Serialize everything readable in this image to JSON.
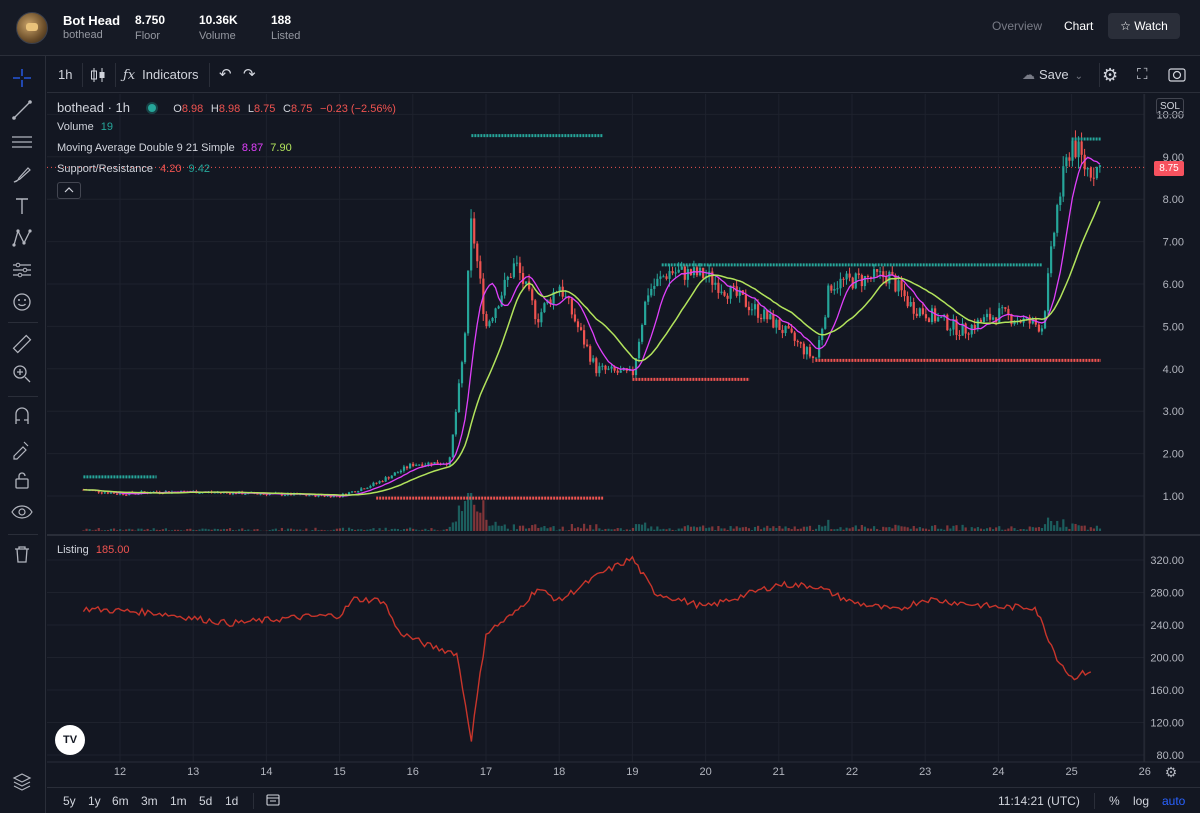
{
  "header": {
    "title": "Bot Head",
    "subtitle": "bothead",
    "stats": [
      {
        "value": "8.750",
        "label": "Floor"
      },
      {
        "value": "10.36K",
        "label": "Volume"
      },
      {
        "value": "188",
        "label": "Listed"
      }
    ],
    "nav": {
      "overview": "Overview",
      "chart": "Chart",
      "watch": "☆ Watch"
    }
  },
  "toolbar": {
    "interval": "1h",
    "indicators": "Indicators",
    "save": "Save"
  },
  "legend": {
    "symbol": "bothead · 1h",
    "o_label": "O",
    "o": "8.98",
    "h_label": "H",
    "h": "8.98",
    "l_label": "L",
    "l": "8.75",
    "c_label": "C",
    "c": "8.75",
    "change": "−0.23 (−2.56%)",
    "volume_label": "Volume",
    "volume_value": "19",
    "ma_label": "Moving Average Double 9 21 Simple",
    "ma_fast": "8.87",
    "ma_slow": "7.90",
    "sr_label": "Support/Resistance",
    "sr_support": "4.20",
    "sr_resistance": "9.42",
    "listing_label": "Listing",
    "listing_value": "185.00"
  },
  "price_scale": {
    "currency": "SOL",
    "last_price": "8.75",
    "ticks": [
      "10.00",
      "9.00",
      "8.00",
      "7.00",
      "6.00",
      "5.00",
      "4.00",
      "3.00",
      "2.00",
      "1.00"
    ]
  },
  "listing_scale": {
    "ticks": [
      "320.00",
      "280.00",
      "240.00",
      "200.00",
      "160.00",
      "120.00",
      "80.00"
    ]
  },
  "time_axis": {
    "ticks": [
      "12",
      "13",
      "14",
      "15",
      "16",
      "17",
      "18",
      "19",
      "20",
      "21",
      "22",
      "23",
      "24",
      "25",
      "26"
    ]
  },
  "bottom": {
    "ranges": [
      "5y",
      "1y",
      "6m",
      "3m",
      "1m",
      "5d",
      "1d"
    ],
    "clock": "11:14:21 (UTC)",
    "percent": "%",
    "log": "log",
    "auto": "auto"
  },
  "colors": {
    "up": "#26a69a",
    "down": "#ef5350",
    "ma_fast": "#e040fb",
    "ma_slow": "#b2e35c",
    "listing": "#c8352b",
    "accent": "#2962ff"
  },
  "chart_data": {
    "type": "candlestick",
    "interval": "1h",
    "x_start_day": 11.5,
    "daily_close": [
      {
        "day": 11.5,
        "close": 1.15
      },
      {
        "day": 12,
        "close": 1.05
      },
      {
        "day": 12.5,
        "close": 1.1
      },
      {
        "day": 13,
        "close": 1.1
      },
      {
        "day": 14,
        "close": 1.05
      },
      {
        "day": 15,
        "close": 1.0
      },
      {
        "day": 15.5,
        "close": 1.3
      },
      {
        "day": 16,
        "close": 1.75
      },
      {
        "day": 16.5,
        "close": 1.8
      },
      {
        "day": 16.7,
        "close": 4.5
      },
      {
        "day": 16.8,
        "close": 7.5
      },
      {
        "day": 17,
        "close": 5.0
      },
      {
        "day": 17.4,
        "close": 6.5
      },
      {
        "day": 17.7,
        "close": 5.2
      },
      {
        "day": 18,
        "close": 6.0
      },
      {
        "day": 18.5,
        "close": 4.0
      },
      {
        "day": 19,
        "close": 3.85
      },
      {
        "day": 19.2,
        "close": 5.8
      },
      {
        "day": 19.5,
        "close": 6.3
      },
      {
        "day": 20,
        "close": 6.2
      },
      {
        "day": 20.6,
        "close": 5.5
      },
      {
        "day": 21,
        "close": 5.0
      },
      {
        "day": 21.5,
        "close": 4.2
      },
      {
        "day": 21.7,
        "close": 6.0
      },
      {
        "day": 22.5,
        "close": 6.2
      },
      {
        "day": 22.8,
        "close": 5.5
      },
      {
        "day": 23.5,
        "close": 4.9
      },
      {
        "day": 24,
        "close": 5.3
      },
      {
        "day": 24.6,
        "close": 5.0
      },
      {
        "day": 24.8,
        "close": 7.8
      },
      {
        "day": 25,
        "close": 9.4
      },
      {
        "day": 25.2,
        "close": 8.7
      },
      {
        "day": 25.4,
        "close": 8.75
      }
    ],
    "support_levels": [
      {
        "price": 0.95,
        "from_day": 15.5,
        "to_day": 18.6
      },
      {
        "price": 3.75,
        "from_day": 19,
        "to_day": 20.6
      },
      {
        "price": 4.2,
        "from_day": 21.5,
        "to_day": 25.4
      }
    ],
    "resistance_levels": [
      {
        "price": 1.45,
        "from_day": 11.5,
        "to_day": 12.5
      },
      {
        "price": 9.5,
        "from_day": 16.8,
        "to_day": 18.6
      },
      {
        "price": 6.45,
        "from_day": 19.4,
        "to_day": 24.6
      },
      {
        "price": 9.42,
        "from_day": 25,
        "to_day": 25.4
      }
    ],
    "listing_series": [
      {
        "day": 11.5,
        "v": 260
      },
      {
        "day": 12.5,
        "v": 255
      },
      {
        "day": 13.5,
        "v": 242
      },
      {
        "day": 14.5,
        "v": 250
      },
      {
        "day": 15,
        "v": 252
      },
      {
        "day": 15.2,
        "v": 272
      },
      {
        "day": 15.6,
        "v": 270
      },
      {
        "day": 15.8,
        "v": 232
      },
      {
        "day": 16.2,
        "v": 215
      },
      {
        "day": 16.6,
        "v": 205
      },
      {
        "day": 16.8,
        "v": 100
      },
      {
        "day": 17,
        "v": 230
      },
      {
        "day": 17.4,
        "v": 255
      },
      {
        "day": 17.7,
        "v": 285
      },
      {
        "day": 18,
        "v": 270
      },
      {
        "day": 18.6,
        "v": 305
      },
      {
        "day": 19,
        "v": 322
      },
      {
        "day": 19.3,
        "v": 280
      },
      {
        "day": 20,
        "v": 262
      },
      {
        "day": 21,
        "v": 290
      },
      {
        "day": 21.5,
        "v": 288
      },
      {
        "day": 22,
        "v": 268
      },
      {
        "day": 22.6,
        "v": 258
      },
      {
        "day": 23,
        "v": 272
      },
      {
        "day": 24,
        "v": 262
      },
      {
        "day": 24.5,
        "v": 262
      },
      {
        "day": 24.8,
        "v": 200
      },
      {
        "day": 25,
        "v": 175
      },
      {
        "day": 25.3,
        "v": 185
      }
    ]
  }
}
